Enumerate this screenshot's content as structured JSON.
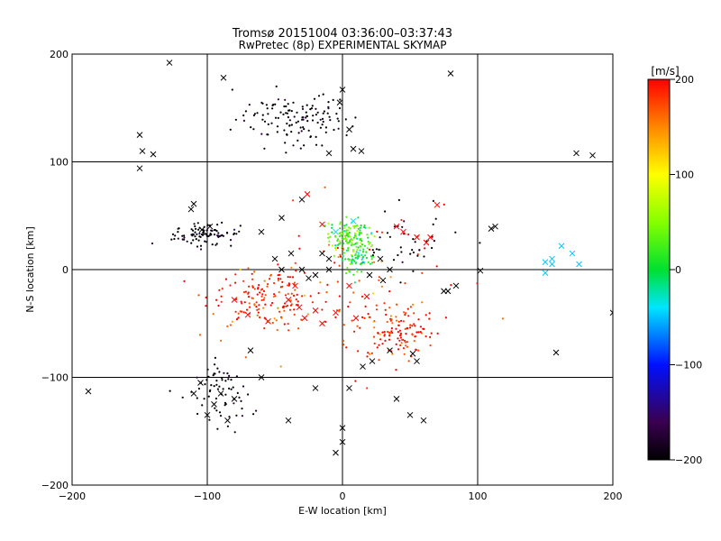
{
  "chart_data": {
    "type": "scatter",
    "title": "Tromsø 20151004 03:36:00–03:37:43",
    "subtitle": "RwPretec (8p) EXPERIMENTAL SKYMAP",
    "xlabel": "E-W location [km]",
    "ylabel": "N-S location [km]",
    "xlim": [
      -200,
      200
    ],
    "ylim": [
      -200,
      200
    ],
    "x_ticks": [
      -200,
      -100,
      0,
      100,
      200
    ],
    "y_ticks": [
      -200,
      -100,
      0,
      100,
      200
    ],
    "grid": true,
    "colorbar": {
      "label": "[m/s]",
      "range": [
        -200,
        200
      ],
      "ticks": [
        -200,
        -100,
        0,
        100,
        200
      ],
      "colormap": "black-purple-blue-cyan-green-yellow-orange-red"
    },
    "clusters": [
      {
        "cx": -35,
        "cy": 140,
        "sx": 22,
        "sy": 12,
        "n": 130,
        "vel": -210
      },
      {
        "cx": -100,
        "cy": 32,
        "sx": 12,
        "sy": 5,
        "n": 90,
        "vel": -210
      },
      {
        "cx": -60,
        "cy": -25,
        "sx": 20,
        "sy": 14,
        "n": 150,
        "vel": 190
      },
      {
        "cx": 40,
        "cy": -58,
        "sx": 15,
        "sy": 12,
        "n": 120,
        "vel": 195
      },
      {
        "cx": 5,
        "cy": 30,
        "sx": 8,
        "sy": 8,
        "n": 140,
        "vel": 25
      },
      {
        "cx": 12,
        "cy": 10,
        "sx": 6,
        "sy": 7,
        "n": 70,
        "vel": 5
      },
      {
        "cx": -90,
        "cy": -115,
        "sx": 10,
        "sy": 15,
        "n": 70,
        "vel": -210
      },
      {
        "cx": 10,
        "cy": -20,
        "sx": 40,
        "sy": 35,
        "n": 90,
        "vel": 180
      },
      {
        "cx": 50,
        "cy": 20,
        "sx": 20,
        "sy": 15,
        "n": 40,
        "vel": -210
      }
    ],
    "x_markers": [
      [
        -150,
        125
      ],
      [
        -148,
        110
      ],
      [
        -140,
        107
      ],
      [
        -150,
        94
      ],
      [
        -128,
        192
      ],
      [
        -88,
        178
      ],
      [
        0,
        167
      ],
      [
        80,
        182
      ],
      [
        173,
        108
      ],
      [
        185,
        106
      ],
      [
        -112,
        56
      ],
      [
        -110,
        61
      ],
      [
        -104,
        37
      ],
      [
        -98,
        40
      ],
      [
        -60,
        35
      ],
      [
        -45,
        48
      ],
      [
        -26,
        70
      ],
      [
        -30,
        65
      ],
      [
        -15,
        42
      ],
      [
        -5,
        35
      ],
      [
        8,
        45
      ],
      [
        40,
        40
      ],
      [
        45,
        35
      ],
      [
        55,
        30
      ],
      [
        70,
        60
      ],
      [
        65,
        30
      ],
      [
        62,
        25
      ],
      [
        113,
        40
      ],
      [
        150,
        7
      ],
      [
        155,
        10
      ],
      [
        162,
        22
      ],
      [
        170,
        15
      ],
      [
        175,
        5
      ],
      [
        150,
        -3
      ],
      [
        -80,
        -28
      ],
      [
        -70,
        -42
      ],
      [
        -55,
        -48
      ],
      [
        -40,
        -28
      ],
      [
        -32,
        -35
      ],
      [
        -28,
        -45
      ],
      [
        -20,
        -38
      ],
      [
        -15,
        -50
      ],
      [
        -35,
        -15
      ],
      [
        -25,
        -8
      ],
      [
        -20,
        -5
      ],
      [
        -10,
        0
      ],
      [
        5,
        -15
      ],
      [
        18,
        -25
      ],
      [
        20,
        -5
      ],
      [
        30,
        -10
      ],
      [
        28,
        10
      ],
      [
        -5,
        -40
      ],
      [
        10,
        -45
      ],
      [
        -30,
        0
      ],
      [
        -45,
        0
      ],
      [
        -50,
        10
      ],
      [
        -10,
        10
      ],
      [
        -15,
        15
      ],
      [
        -38,
        15
      ],
      [
        35,
        0
      ],
      [
        75,
        -20
      ],
      [
        78,
        -20
      ],
      [
        84,
        -15
      ],
      [
        -60,
        -100
      ],
      [
        -68,
        -75
      ],
      [
        -90,
        -115
      ],
      [
        -95,
        -125
      ],
      [
        -100,
        -135
      ],
      [
        -80,
        -120
      ],
      [
        -105,
        -105
      ],
      [
        -110,
        -115
      ],
      [
        -85,
        -140
      ],
      [
        -188,
        -113
      ],
      [
        -40,
        -140
      ],
      [
        0,
        -147
      ],
      [
        -5,
        -170
      ],
      [
        0,
        -160
      ],
      [
        40,
        -120
      ],
      [
        50,
        -135
      ],
      [
        60,
        -140
      ],
      [
        158,
        -77
      ],
      [
        200,
        -40
      ],
      [
        -20,
        -110
      ],
      [
        5,
        -110
      ],
      [
        15,
        -90
      ],
      [
        52,
        -78
      ],
      [
        55,
        -85
      ],
      [
        35,
        -75
      ],
      [
        22,
        -85
      ],
      [
        102,
        -1
      ],
      [
        155,
        5
      ],
      [
        110,
        38
      ],
      [
        -2,
        155
      ],
      [
        5,
        130
      ],
      [
        8,
        112
      ],
      [
        14,
        110
      ],
      [
        -10,
        108
      ]
    ]
  }
}
